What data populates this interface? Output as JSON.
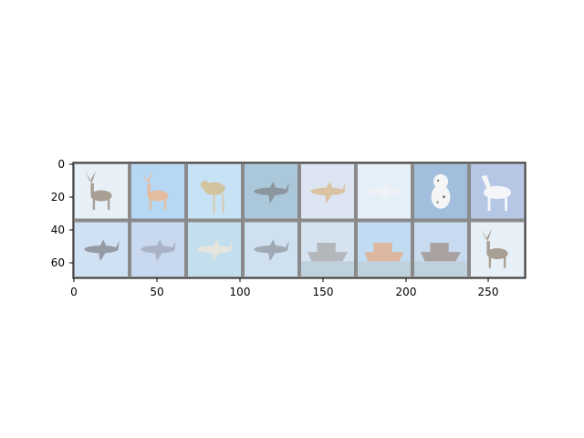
{
  "figure": {
    "x_ticks": [
      "0",
      "50",
      "100",
      "150",
      "200",
      "250"
    ],
    "y_ticks": [
      "0",
      "20",
      "40",
      "60"
    ]
  },
  "grid": {
    "rows": 2,
    "cols": 8,
    "tiles": [
      {
        "subject": "deer",
        "bg": "#dbe8f2",
        "fg": "#7a6a5a"
      },
      {
        "subject": "deer",
        "bg": "#8fc4ee",
        "fg": "#d69a6e"
      },
      {
        "subject": "bird",
        "bg": "#a9d3f0",
        "fg": "#b8a46a"
      },
      {
        "subject": "airplane",
        "bg": "#7fa9c6",
        "fg": "#4d5f6a"
      },
      {
        "subject": "airplane",
        "bg": "#c9d8ea",
        "fg": "#c7a472"
      },
      {
        "subject": "airplane",
        "bg": "#d6e6f5",
        "fg": "#e5eaf2"
      },
      {
        "subject": "dog",
        "bg": "#6f9dc9",
        "fg": "#f0f0f0"
      },
      {
        "subject": "horse",
        "bg": "#8fa9d9",
        "fg": "#eef1f6"
      },
      {
        "subject": "airplane",
        "bg": "#b9d2ee",
        "fg": "#5c6472"
      },
      {
        "subject": "airplane",
        "bg": "#a9c4e6",
        "fg": "#7b8aa6"
      },
      {
        "subject": "airplane",
        "bg": "#a3cde2",
        "fg": "#d8d8cc"
      },
      {
        "subject": "airplane",
        "bg": "#b5cfea",
        "fg": "#6d7d8d"
      },
      {
        "subject": "ship",
        "bg": "#bfd3e6",
        "fg": "#8a8f96"
      },
      {
        "subject": "ship",
        "bg": "#9ec8ec",
        "fg": "#c98f6a"
      },
      {
        "subject": "ship",
        "bg": "#a9c6e6",
        "fg": "#7c6e6e"
      },
      {
        "subject": "deer",
        "bg": "#dbe8f2",
        "fg": "#7a6a5a"
      }
    ]
  }
}
